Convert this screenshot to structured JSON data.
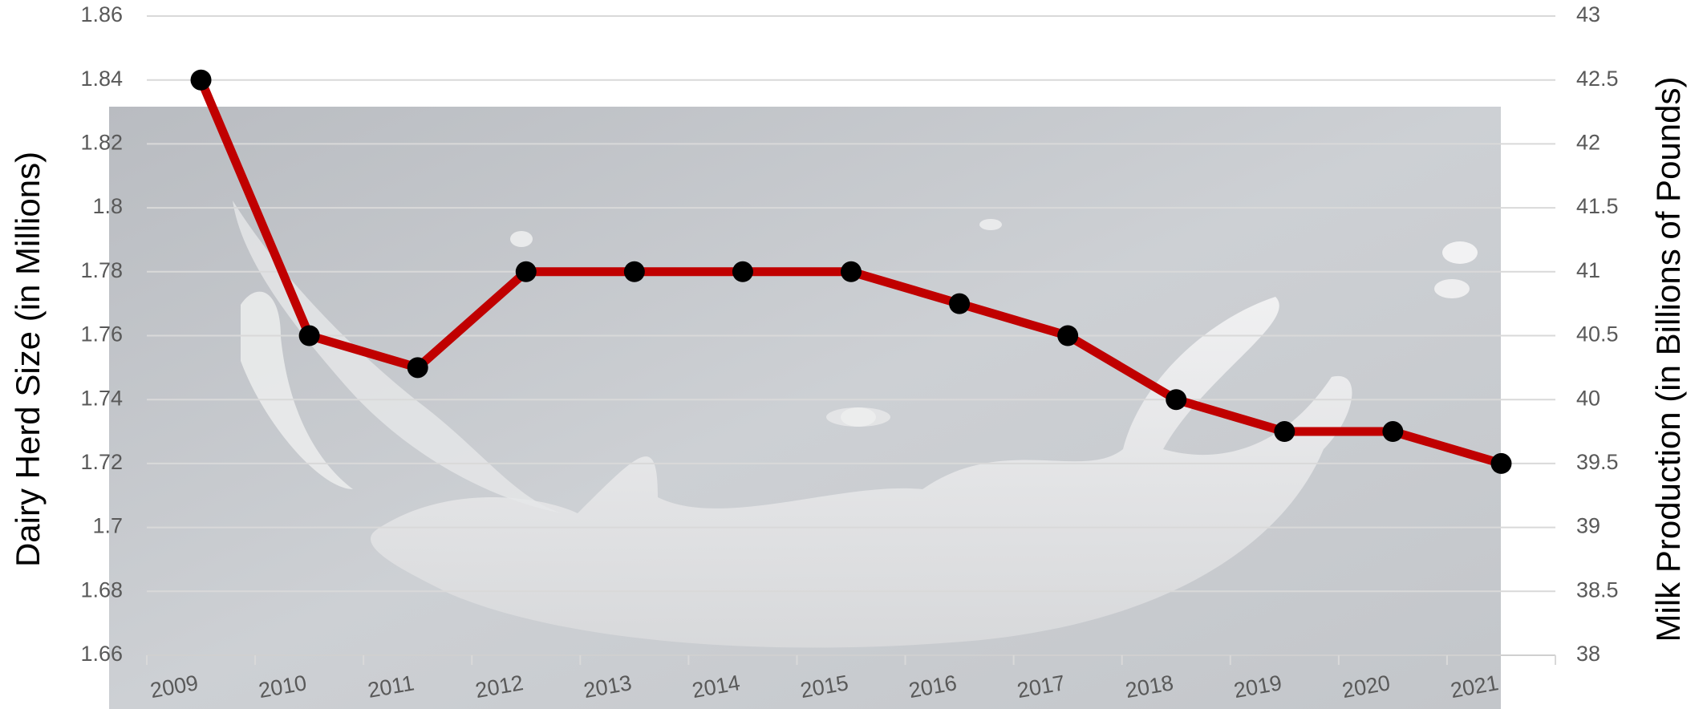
{
  "chart_data": {
    "type": "line",
    "categories": [
      "2009",
      "2010",
      "2011",
      "2012",
      "2013",
      "2014",
      "2015",
      "2016",
      "2017",
      "2018",
      "2019",
      "2020",
      "2021"
    ],
    "series": [
      {
        "color": "#c00000",
        "values": [
          1.84,
          1.76,
          1.75,
          1.78,
          1.78,
          1.78,
          1.78,
          1.77,
          1.76,
          1.74,
          1.73,
          1.73,
          1.72
        ]
      }
    ],
    "y_label": "Dairy Herd Size (in Millions)",
    "y2_label": "Milk Production (in Billions of Pounds)",
    "ylim": [
      1.66,
      1.86
    ],
    "yticks": [
      1.66,
      1.68,
      1.7,
      1.72,
      1.74,
      1.76,
      1.78,
      1.8,
      1.82,
      1.84,
      1.86
    ],
    "y2lim": [
      38,
      43
    ],
    "y2ticks": [
      38,
      38.5,
      39,
      39.5,
      40,
      40.5,
      41,
      41.5,
      42,
      42.5,
      43
    ],
    "grid": true
  }
}
